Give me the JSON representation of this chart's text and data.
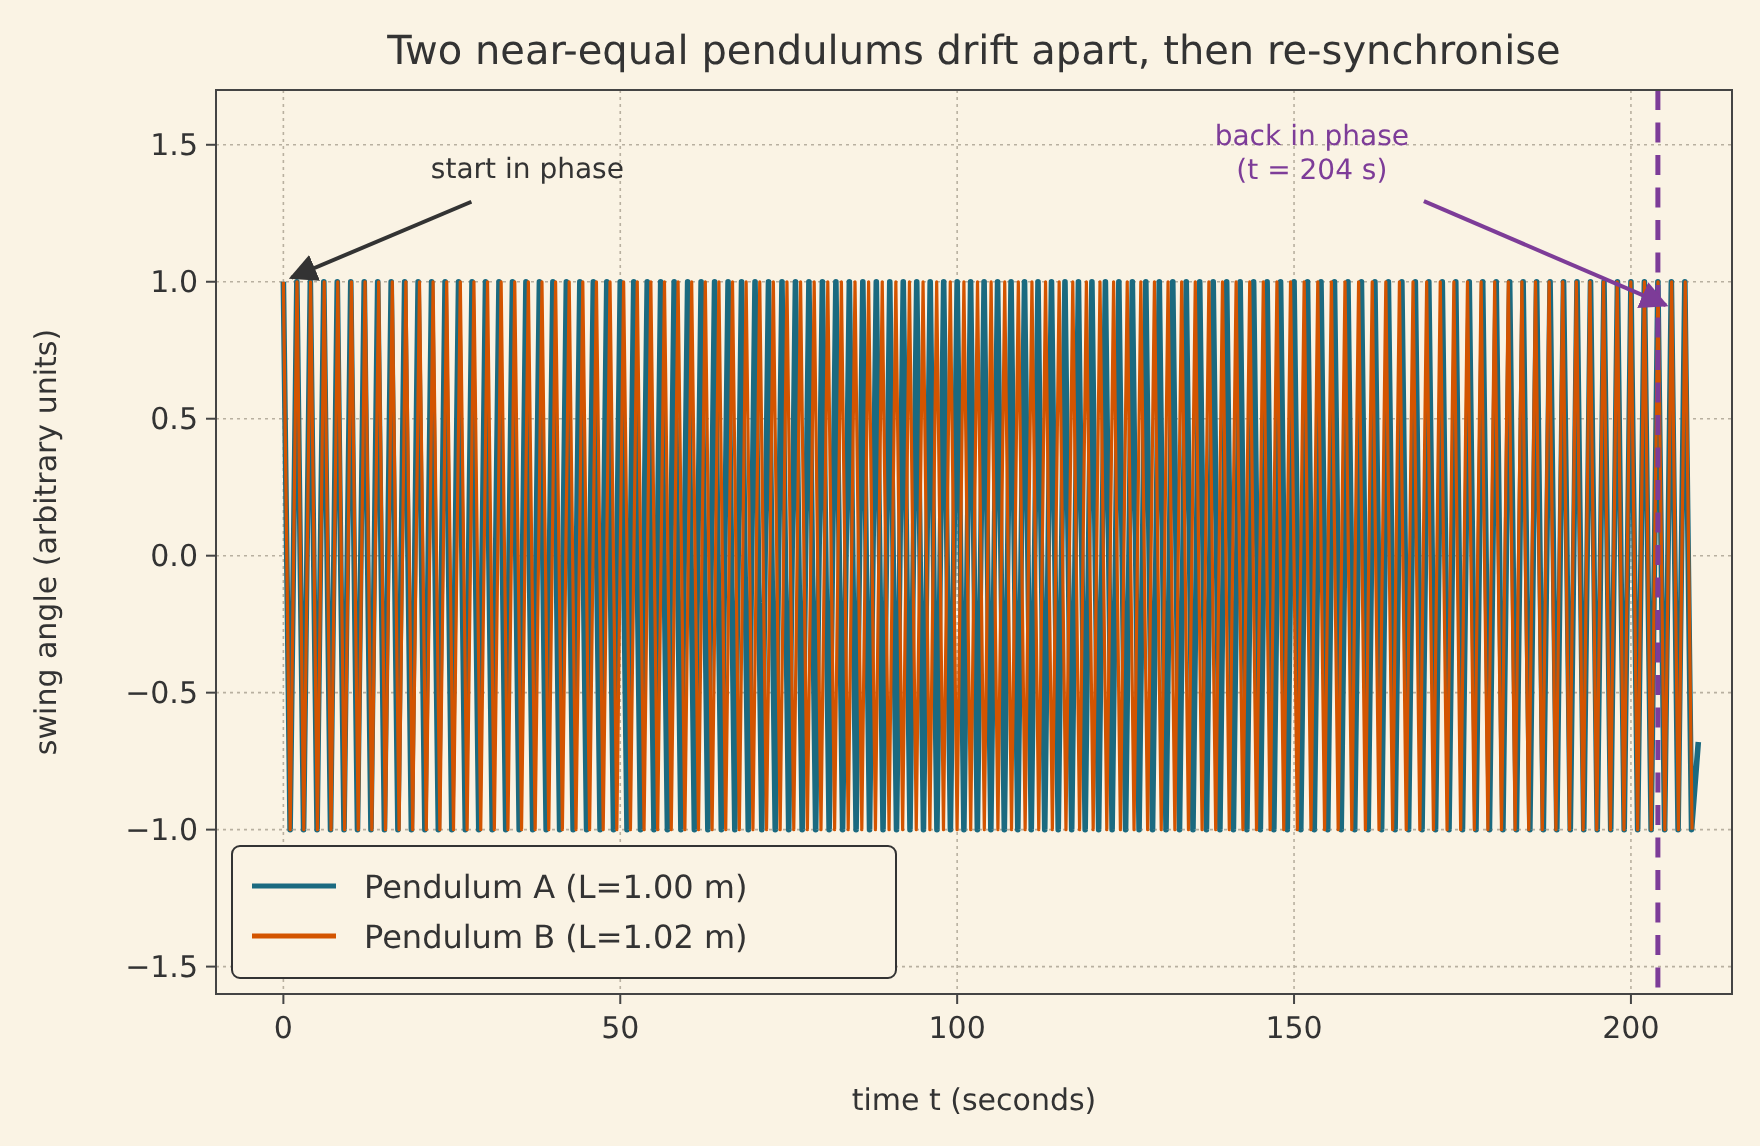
{
  "chart_data": {
    "type": "line",
    "title": "Two near-equal pendulums drift apart, then re-synchronise",
    "xlabel": "time  t  (seconds)",
    "ylabel": "swing angle  (arbitrary units)",
    "xlim": [
      -10,
      215
    ],
    "xticks": [
      0,
      50,
      100,
      150,
      200
    ],
    "ylim": [
      -1.6,
      1.7
    ],
    "yticks": [
      {
        "value": -1.5,
        "label": "−1.5"
      },
      {
        "value": -1,
        "label": "−1.0"
      },
      {
        "value": -0.5,
        "label": "−0.5"
      },
      {
        "value": 0,
        "label": "0.0"
      },
      {
        "value": 0.5,
        "label": "0.5"
      },
      {
        "value": 1,
        "label": "1.0"
      },
      {
        "value": 1.5,
        "label": "1.5"
      }
    ],
    "grid": true,
    "legend": "bottom left",
    "marker": "none",
    "line_style": "solid",
    "series": [
      {
        "name": "Pendulum A  (L=1.00 m)",
        "color": "#1b6a80",
        "x": [
          0,
          1,
          2,
          3,
          4,
          5,
          6,
          7,
          8,
          9,
          10,
          11,
          12,
          13,
          14,
          15,
          16,
          17,
          18,
          19,
          20,
          21,
          22,
          23,
          24,
          25,
          26,
          27,
          28,
          29,
          30,
          31,
          32,
          33,
          34,
          35,
          36,
          37,
          38,
          39,
          40,
          41,
          42,
          43,
          44,
          45,
          46,
          47,
          48,
          49,
          50,
          51,
          52,
          53,
          54,
          55,
          56,
          57,
          58,
          59,
          60,
          61,
          62,
          63,
          64,
          65,
          66,
          67,
          68,
          69,
          70,
          71,
          72,
          73,
          74,
          75,
          76,
          77,
          78,
          79,
          80,
          81,
          82,
          83,
          84,
          85,
          86,
          87,
          88,
          89,
          90,
          91,
          92,
          93,
          94,
          95,
          96,
          97,
          98,
          99,
          100,
          101,
          102,
          103,
          104,
          105,
          106,
          107,
          108,
          109,
          110,
          111,
          112,
          113,
          114,
          115,
          116,
          117,
          118,
          119,
          120,
          121,
          122,
          123,
          124,
          125,
          126,
          127,
          128,
          129,
          130,
          131,
          132,
          133,
          134,
          135,
          136,
          137,
          138,
          139,
          140,
          141,
          142,
          143,
          144,
          145,
          146,
          147,
          148,
          149,
          150,
          151,
          152,
          153,
          154,
          155,
          156,
          157,
          158,
          159,
          160,
          161,
          162,
          163,
          164,
          165,
          166,
          167,
          168,
          169,
          170,
          171,
          172,
          173,
          174,
          175,
          176,
          177,
          178,
          179,
          180,
          181,
          182,
          183,
          184,
          185,
          186,
          187,
          188,
          189,
          190,
          191,
          192,
          193,
          194,
          195,
          196,
          197,
          198,
          199,
          200,
          201,
          202,
          203,
          204,
          205,
          206,
          207,
          208,
          209,
          210
        ],
        "values": [
          1,
          -1,
          1,
          -1,
          1,
          -1,
          1,
          -1,
          1,
          -1,
          1,
          -1,
          1,
          -1,
          1,
          -1,
          1,
          -1,
          1,
          -1,
          1,
          -1,
          1,
          -1,
          1,
          -1,
          1,
          -1,
          1,
          -1,
          1,
          -1,
          1,
          -1,
          1,
          -1,
          1,
          -1,
          1,
          -1,
          1,
          -1,
          1,
          -1,
          1,
          -1,
          1,
          -1,
          1,
          -1,
          1,
          -1,
          1,
          -1,
          1,
          -1,
          1,
          -1,
          1,
          -1,
          1,
          -1,
          1,
          -1,
          1,
          -1,
          1,
          -1,
          1,
          -1,
          1,
          -1,
          1,
          -1,
          1,
          -1,
          1,
          -1,
          1,
          -1,
          1,
          -1,
          1,
          -1,
          1,
          -1,
          1,
          -1,
          1,
          -1,
          1,
          -1,
          1,
          -1,
          1,
          -1,
          1,
          -1,
          1,
          -1,
          1,
          -1,
          1,
          -1,
          1,
          -1,
          1,
          -1,
          1,
          -1,
          1,
          -1,
          1,
          -1,
          1,
          -1,
          1,
          -1,
          1,
          -1,
          1,
          -1,
          1,
          -1,
          1,
          -1,
          1,
          -1,
          1,
          -1,
          1,
          -1,
          1,
          -1,
          1,
          -1,
          1,
          -1,
          1,
          -1,
          1,
          -1,
          1,
          -1,
          1,
          -1,
          1,
          -1,
          1,
          -1,
          1,
          -1,
          1,
          -1,
          1,
          -1,
          1,
          -1,
          1,
          -1,
          1,
          -1,
          1,
          -1,
          1,
          -1,
          1,
          -1,
          1,
          -1,
          1,
          -1,
          1,
          -1,
          1,
          -1,
          1,
          -1,
          1,
          -1,
          1,
          -1,
          1,
          -1,
          1,
          -1,
          1,
          -1,
          1,
          -1,
          1,
          -1,
          1,
          -1,
          1,
          -1,
          1,
          -1,
          1,
          -1,
          1,
          -1,
          1,
          -1,
          1,
          -1,
          1,
          -1,
          1,
          -1,
          -0.68
        ]
      },
      {
        "name": "Pendulum B  (L=1.02 m)",
        "color": "#d35400",
        "x": [
          0,
          1.01,
          2.02,
          3.03,
          4.04,
          5.05,
          6.06,
          7.07,
          8.08,
          9.09,
          10.1,
          11.11,
          12.12,
          13.13,
          14.14,
          15.15,
          16.16,
          17.17,
          18.18,
          19.19,
          20.2,
          21.21,
          22.22,
          23.23,
          24.24,
          25.25,
          26.26,
          27.27,
          28.28,
          29.29,
          30.3,
          31.31,
          32.32,
          33.33,
          34.34,
          35.35,
          36.36,
          37.37,
          38.38,
          39.39,
          40.4,
          41.41,
          42.42,
          43.43,
          44.44,
          45.45,
          46.46,
          47.47,
          48.48,
          49.49,
          50.5,
          51.51,
          52.52,
          53.53,
          54.54,
          55.55,
          56.56,
          57.57,
          58.58,
          59.59,
          60.6,
          61.61,
          62.62,
          63.63,
          64.64,
          65.65,
          66.66,
          67.67,
          68.68,
          69.69,
          70.7,
          71.71,
          72.72,
          73.73,
          74.74,
          75.75,
          76.76,
          77.77,
          78.78,
          79.79,
          80.8,
          81.81,
          82.82,
          83.83,
          84.84,
          85.85,
          86.86,
          87.87,
          88.88,
          89.89,
          90.9,
          91.91,
          92.92,
          93.93,
          94.94,
          95.95,
          96.96,
          97.97,
          98.98,
          99.99,
          101,
          102.01,
          103.02,
          104.03,
          105.04,
          106.05,
          107.06,
          108.07,
          109.08,
          110.09,
          111.1,
          112.11,
          113.12,
          114.13,
          115.14,
          116.15,
          117.16,
          118.17,
          119.18,
          120.19,
          121.2,
          122.21,
          123.22,
          124.23,
          125.24,
          126.25,
          127.26,
          128.27,
          129.28,
          130.29,
          131.3,
          132.31,
          133.32,
          134.33,
          135.34,
          136.35,
          137.36,
          138.37,
          139.38,
          140.39,
          141.4,
          142.41,
          143.42,
          144.43,
          145.44,
          146.45,
          147.46,
          148.47,
          149.48,
          150.49,
          151.5,
          152.51,
          153.52,
          154.53,
          155.54,
          156.55,
          157.56,
          158.57,
          159.58,
          160.59,
          161.6,
          162.61,
          163.62,
          164.63,
          165.64,
          166.65,
          167.66,
          168.67,
          169.68,
          170.69,
          171.7,
          172.71,
          173.72,
          174.73,
          175.74,
          176.75,
          177.76,
          178.77,
          179.78,
          180.79,
          181.8,
          182.81,
          183.82,
          184.83,
          185.84,
          186.85,
          187.86,
          188.87,
          189.88,
          190.89,
          191.9,
          192.91,
          193.92,
          194.93,
          195.94,
          196.95,
          197.96,
          198.97,
          199.98,
          200.99,
          202,
          203.01,
          204.02,
          205.03,
          206.04,
          207.05,
          208.06,
          209.07
        ],
        "values": [
          1,
          -1,
          1,
          -1,
          1,
          -1,
          1,
          -1,
          1,
          -1,
          1,
          -1,
          1,
          -1,
          1,
          -1,
          1,
          -1,
          1,
          -1,
          1,
          -1,
          1,
          -1,
          1,
          -1,
          1,
          -1,
          1,
          -1,
          1,
          -1,
          1,
          -1,
          1,
          -1,
          1,
          -1,
          1,
          -1,
          1,
          -1,
          1,
          -1,
          1,
          -1,
          1,
          -1,
          1,
          -1,
          1,
          -1,
          1,
          -1,
          1,
          -1,
          1,
          -1,
          1,
          -1,
          1,
          -1,
          1,
          -1,
          1,
          -1,
          1,
          -1,
          1,
          -1,
          1,
          -1,
          1,
          -1,
          1,
          -1,
          1,
          -1,
          1,
          -1,
          1,
          -1,
          1,
          -1,
          1,
          -1,
          1,
          -1,
          1,
          -1,
          1,
          -1,
          1,
          -1,
          1,
          -1,
          1,
          -1,
          1,
          -1,
          1,
          -1,
          1,
          -1,
          1,
          -1,
          1,
          -1,
          1,
          -1,
          1,
          -1,
          1,
          -1,
          1,
          -1,
          1,
          -1,
          1,
          -1,
          1,
          -1,
          1,
          -1,
          1,
          -1,
          1,
          -1,
          1,
          -1,
          1,
          -1,
          1,
          -1,
          1,
          -1,
          1,
          -1,
          1,
          -1,
          1,
          -1,
          1,
          -1,
          1,
          -1,
          1,
          -1,
          1,
          -1,
          1,
          -1,
          1,
          -1,
          1,
          -1,
          1,
          -1,
          1,
          -1,
          1,
          -1,
          1,
          -1,
          1,
          -1,
          1,
          -1,
          1,
          -1,
          1,
          -1,
          1,
          -1,
          1,
          -1,
          1,
          -1,
          1,
          -1,
          1,
          -1,
          1,
          -1,
          1,
          -1,
          1,
          -1,
          1,
          -1,
          1,
          -1,
          1,
          -1,
          1,
          -1,
          1,
          -1,
          1,
          -1,
          1,
          -1,
          1,
          -1,
          1,
          -1,
          1,
          -1
        ]
      }
    ],
    "ref_lines": [
      {
        "axis": "x",
        "value": 204,
        "color": "#7d3c98",
        "line_style": "dashed"
      }
    ],
    "annotations": [
      {
        "text": "start in phase",
        "x": 0,
        "y": 1
      },
      {
        "text": "back in phase\n(t = 204 s)",
        "x": 204,
        "y": 0.9
      }
    ]
  }
}
